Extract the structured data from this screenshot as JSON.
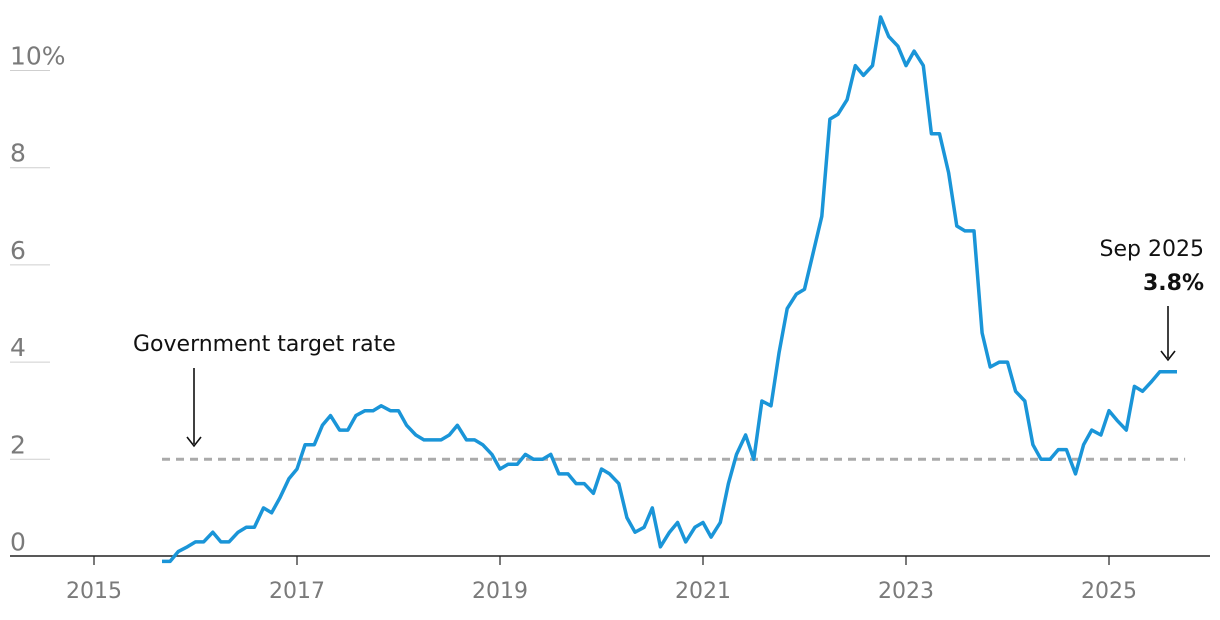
{
  "chart_data": {
    "type": "line",
    "ylim": [
      0,
      10
    ],
    "xlim": [
      2014.6,
      2026.05
    ],
    "grid": true,
    "y_ticks": [
      {
        "value": 0,
        "label": "0"
      },
      {
        "value": 2,
        "label": "2"
      },
      {
        "value": 4,
        "label": "4"
      },
      {
        "value": 6,
        "label": "6"
      },
      {
        "value": 8,
        "label": "8"
      },
      {
        "value": 10,
        "label": "10%"
      }
    ],
    "x_ticks": [
      {
        "value": 2015,
        "label": "2015"
      },
      {
        "value": 2017,
        "label": "2017"
      },
      {
        "value": 2019,
        "label": "2019"
      },
      {
        "value": 2021,
        "label": "2021"
      },
      {
        "value": 2023,
        "label": "2023"
      },
      {
        "value": 2025,
        "label": "2025"
      }
    ],
    "colors": {
      "series": "#1a95d8",
      "target": "#aaaaaa",
      "axis": "#222222"
    },
    "target": {
      "value": 2,
      "label": "Government target rate",
      "x_start": 2015.67,
      "x_end": 2025.75
    },
    "end_annotation": {
      "date_label": "Sep 2025",
      "value_label": "3.8%"
    },
    "series": [
      {
        "x": [
          2015.67,
          2015.75,
          2015.83,
          2015.92,
          2016.0,
          2016.08,
          2016.17,
          2016.25,
          2016.33,
          2016.42,
          2016.5,
          2016.58,
          2016.67,
          2016.75,
          2016.83,
          2016.92,
          2017.0,
          2017.08,
          2017.17,
          2017.25,
          2017.33,
          2017.42,
          2017.5,
          2017.58,
          2017.67,
          2017.75,
          2017.83,
          2017.92,
          2018.0,
          2018.08,
          2018.17,
          2018.25,
          2018.33,
          2018.42,
          2018.5,
          2018.58,
          2018.67,
          2018.75,
          2018.83,
          2018.92,
          2019.0,
          2019.08,
          2019.17,
          2019.25,
          2019.33,
          2019.42,
          2019.5,
          2019.58,
          2019.67,
          2019.75,
          2019.83,
          2019.92,
          2020.0,
          2020.08,
          2020.17,
          2020.25,
          2020.33,
          2020.42,
          2020.5,
          2020.58,
          2020.67,
          2020.75,
          2020.83,
          2020.92,
          2021.0,
          2021.08,
          2021.17,
          2021.25,
          2021.33,
          2021.42,
          2021.5,
          2021.58,
          2021.67,
          2021.75,
          2021.83,
          2021.92,
          2022.0,
          2022.08,
          2022.17,
          2022.25,
          2022.33,
          2022.42,
          2022.5,
          2022.58,
          2022.67,
          2022.75,
          2022.83,
          2022.92,
          2023.0,
          2023.08,
          2023.17,
          2023.25,
          2023.33,
          2023.42,
          2023.5,
          2023.58,
          2023.67,
          2023.75,
          2023.83,
          2023.92,
          2024.0,
          2024.08,
          2024.17,
          2024.25,
          2024.33,
          2024.42,
          2024.5,
          2024.58,
          2024.67,
          2024.75,
          2024.83,
          2024.92,
          2025.0,
          2025.08,
          2025.17,
          2025.25,
          2025.33,
          2025.42,
          2025.5,
          2025.58,
          2025.67
        ],
        "values": [
          -0.1,
          -0.1,
          0.1,
          0.2,
          0.3,
          0.3,
          0.5,
          0.3,
          0.3,
          0.5,
          0.6,
          0.6,
          1.0,
          0.9,
          1.2,
          1.6,
          1.8,
          2.3,
          2.3,
          2.7,
          2.9,
          2.6,
          2.6,
          2.9,
          3.0,
          3.0,
          3.1,
          3.0,
          3.0,
          2.7,
          2.5,
          2.4,
          2.4,
          2.4,
          2.5,
          2.7,
          2.4,
          2.4,
          2.3,
          2.1,
          1.8,
          1.9,
          1.9,
          2.1,
          2.0,
          2.0,
          2.1,
          1.7,
          1.7,
          1.5,
          1.5,
          1.3,
          1.8,
          1.7,
          1.5,
          0.8,
          0.5,
          0.6,
          1.0,
          0.2,
          0.5,
          0.7,
          0.3,
          0.6,
          0.7,
          0.4,
          0.7,
          1.5,
          2.1,
          2.5,
          2.0,
          3.2,
          3.1,
          4.2,
          5.1,
          5.4,
          5.5,
          6.2,
          7.0,
          9.0,
          9.1,
          9.4,
          10.1,
          9.9,
          10.1,
          11.1,
          10.7,
          10.5,
          10.1,
          10.4,
          10.1,
          8.7,
          8.7,
          7.9,
          6.8,
          6.7,
          6.7,
          4.6,
          3.9,
          4.0,
          4.0,
          3.4,
          3.2,
          2.3,
          2.0,
          2.0,
          2.2,
          2.2,
          1.7,
          2.3,
          2.6,
          2.5,
          3.0,
          2.8,
          2.6,
          3.5,
          3.4,
          3.6,
          3.8,
          3.8,
          3.8
        ]
      }
    ]
  }
}
